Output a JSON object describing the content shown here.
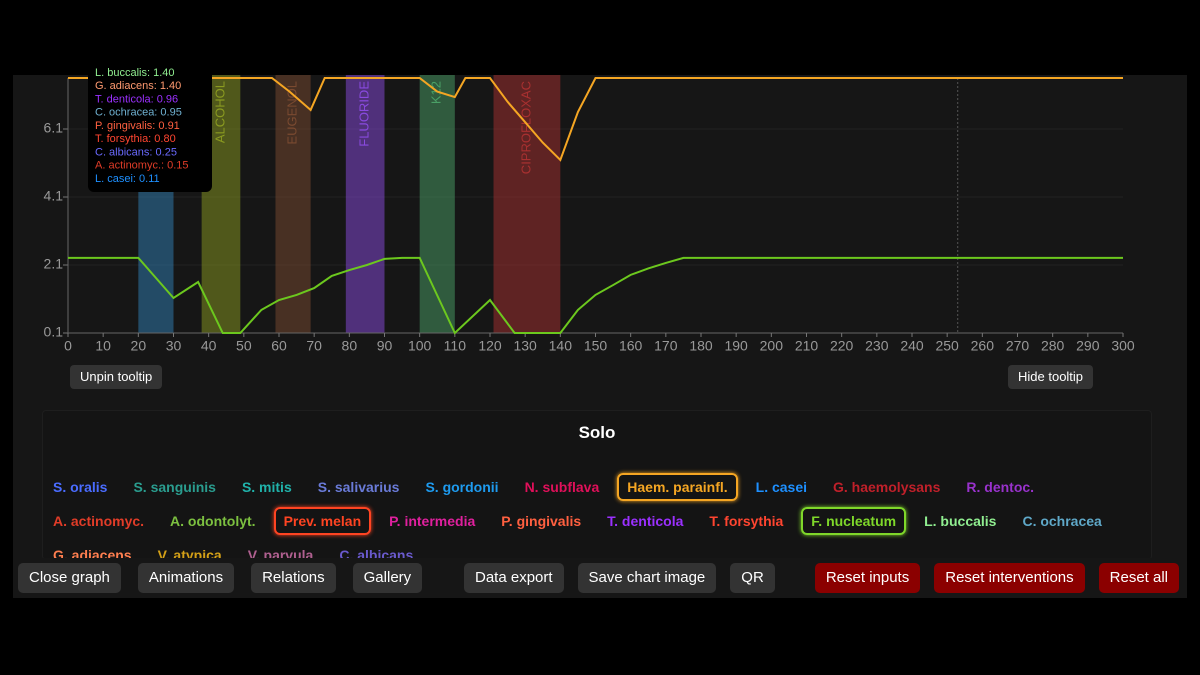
{
  "chart_data": {
    "type": "line",
    "xlim": [
      0,
      300
    ],
    "ylim": [
      0.1,
      7.6
    ],
    "xticks": [
      0,
      10,
      20,
      30,
      40,
      50,
      60,
      70,
      80,
      90,
      100,
      110,
      120,
      130,
      140,
      150,
      160,
      170,
      180,
      190,
      200,
      210,
      220,
      230,
      240,
      250,
      260,
      270,
      280,
      290,
      300
    ],
    "yticks": [
      0.1,
      2.1,
      4.1,
      6.1
    ],
    "grid": true,
    "cursor_x": 253,
    "series": [
      {
        "color": "#f5a623",
        "x": [
          0,
          58,
          63,
          69,
          73,
          100,
          105,
          110,
          113,
          120,
          125,
          130,
          135,
          140,
          145,
          150,
          300
        ],
        "values": [
          7.6,
          7.6,
          7.2,
          6.66,
          7.6,
          7.6,
          7.2,
          7.04,
          7.6,
          7.6,
          6.9,
          6.3,
          5.7,
          5.19,
          6.6,
          7.6,
          7.6
        ]
      },
      {
        "color": "#6cc81e",
        "x": [
          0,
          20,
          30,
          37,
          44,
          49,
          55,
          60,
          65,
          70,
          75,
          80,
          85,
          90,
          95,
          100,
          110,
          120,
          127,
          140,
          145,
          150,
          155,
          160,
          165,
          170,
          175,
          300
        ],
        "values": [
          2.31,
          2.31,
          1.13,
          1.6,
          0.1,
          0.1,
          0.78,
          1.07,
          1.22,
          1.42,
          1.78,
          1.95,
          2.1,
          2.28,
          2.31,
          2.31,
          0.1,
          1.07,
          0.1,
          0.1,
          0.78,
          1.22,
          1.51,
          1.81,
          2.0,
          2.16,
          2.31,
          2.31
        ]
      }
    ],
    "interventions": [
      {
        "start": 20,
        "end": 30,
        "color": "#2f7fb5"
      },
      {
        "start": 38,
        "end": 49,
        "label": "ALCOHOL",
        "color": "#8a9a20"
      },
      {
        "start": 59,
        "end": 69,
        "label": "EUGENOL",
        "color": "#7a4a30"
      },
      {
        "start": 79,
        "end": 90,
        "label": "FLUORIDE",
        "color": "#8a4ae0"
      },
      {
        "start": 100,
        "end": 110,
        "label": "K12",
        "color": "#4aa066"
      },
      {
        "start": 121,
        "end": 140,
        "label": "CIPROFLOXAC",
        "color": "#a83030"
      }
    ],
    "tooltip": [
      {
        "text": "L. buccalis: 1.40",
        "color": "#90ee90"
      },
      {
        "text": "G. adiacens: 1.40",
        "color": "#ff9a70"
      },
      {
        "text": "T. denticola: 0.96",
        "color": "#9b30ff"
      },
      {
        "text": "C. ochracea: 0.95",
        "color": "#6fb0d0"
      },
      {
        "text": "P. gingivalis: 0.91",
        "color": "#ff6040"
      },
      {
        "text": "T. forsythia: 0.80",
        "color": "#ff4530"
      },
      {
        "text": "C. albicans: 0.25",
        "color": "#6a6aff"
      },
      {
        "text": "A. actinomyc.: 0.15",
        "color": "#e03c28"
      },
      {
        "text": "L. casei: 0.11",
        "color": "#1e90ff"
      }
    ]
  },
  "chart_buttons": {
    "unpin": "Unpin tooltip",
    "hide": "Hide tooltip"
  },
  "legend": {
    "title": "Solo",
    "rows": [
      [
        {
          "label": "S. oralis",
          "color": "#4a6cff"
        },
        {
          "label": "S. sanguinis",
          "color": "#2a9d8f"
        },
        {
          "label": "S. mitis",
          "color": "#20b2aa"
        },
        {
          "label": "S. salivarius",
          "color": "#6a7bd8"
        },
        {
          "label": "S. gordonii",
          "color": "#1e9bef"
        },
        {
          "label": "N. subflava",
          "color": "#e0105a"
        },
        {
          "label": "Haem. parainfl.",
          "color": "#f5a623",
          "selected": true
        },
        {
          "label": "L. casei",
          "color": "#1e90ff"
        },
        {
          "label": "G. haemolysans",
          "color": "#c0202a"
        },
        {
          "label": "R. dentoc.",
          "color": "#9932cc"
        }
      ],
      [
        {
          "label": "A. actinomyc.",
          "color": "#e03c28"
        },
        {
          "label": "A. odontolyt.",
          "color": "#7cc040"
        },
        {
          "label": "Prev. melan",
          "color": "#ff4422",
          "selected": true
        },
        {
          "label": "P. intermedia",
          "color": "#e0209e"
        },
        {
          "label": "P. gingivalis",
          "color": "#ff6040"
        },
        {
          "label": "T. denticola",
          "color": "#9b30ff"
        },
        {
          "label": "T. forsythia",
          "color": "#ff4530"
        },
        {
          "label": "F. nucleatum",
          "color": "#7fd82a",
          "selected": true
        },
        {
          "label": "L. buccalis",
          "color": "#90ee90"
        },
        {
          "label": "C. ochracea",
          "color": "#5fa8c8"
        }
      ],
      [
        {
          "label": "G. adiacens",
          "color": "#ff7f50"
        },
        {
          "label": "V. atypica",
          "color": "#d4a017"
        },
        {
          "label": "V. parvula",
          "color": "#b06090"
        },
        {
          "label": "C. albicans",
          "color": "#6a5acd"
        }
      ]
    ]
  },
  "toolbar": {
    "left": [
      "Close graph",
      "Animations",
      "Relations",
      "Gallery"
    ],
    "middle": [
      "Data export",
      "Save chart image",
      "QR"
    ],
    "reset": [
      "Reset inputs",
      "Reset interventions",
      "Reset all"
    ]
  }
}
